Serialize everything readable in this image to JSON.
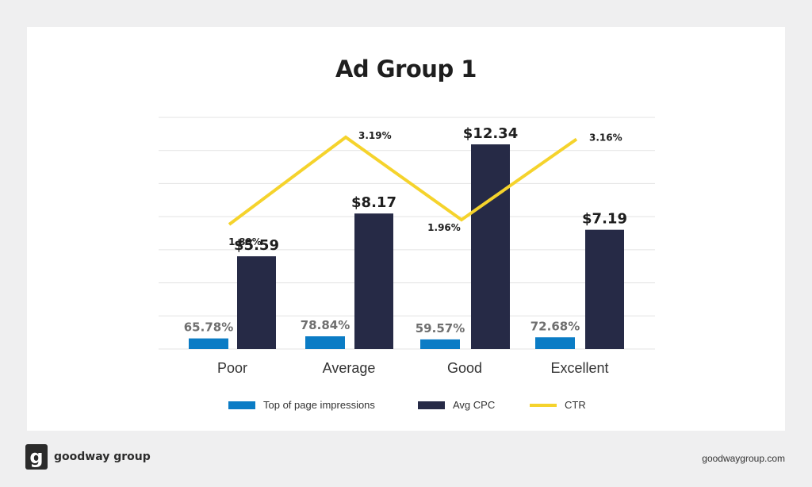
{
  "brand": {
    "logo_letter": "g",
    "name": "goodway group",
    "url": "goodwaygroup.com"
  },
  "colors": {
    "impressions": "#0b7cc5",
    "cpc": "#262a46",
    "ctr": "#f5d32c",
    "grid": "#e3e3e3",
    "label_impr": "#6f6f6f",
    "label_dark": "#1e1e1e"
  },
  "chart_data": {
    "type": "bar",
    "title": "Ad Group 1",
    "categories": [
      "Poor",
      "Average",
      "Good",
      "Excellent"
    ],
    "series": [
      {
        "name": "Top of page impressions",
        "kind": "bar",
        "values": [
          65.78,
          78.84,
          59.57,
          72.68
        ],
        "labels": [
          "65.78%",
          "78.84%",
          "59.57%",
          "72.68%"
        ]
      },
      {
        "name": "Avg CPC",
        "kind": "bar",
        "values": [
          5.59,
          8.17,
          12.34,
          7.19
        ],
        "labels": [
          "$5.59",
          "$8.17",
          "$12.34",
          "$7.19"
        ]
      },
      {
        "name": "CTR",
        "kind": "line",
        "values": [
          1.89,
          3.19,
          1.96,
          3.16
        ],
        "labels": [
          "1.89%",
          "3.19%",
          "1.96%",
          "3.16%"
        ]
      }
    ],
    "legend_position": "bottom",
    "grid": true
  }
}
